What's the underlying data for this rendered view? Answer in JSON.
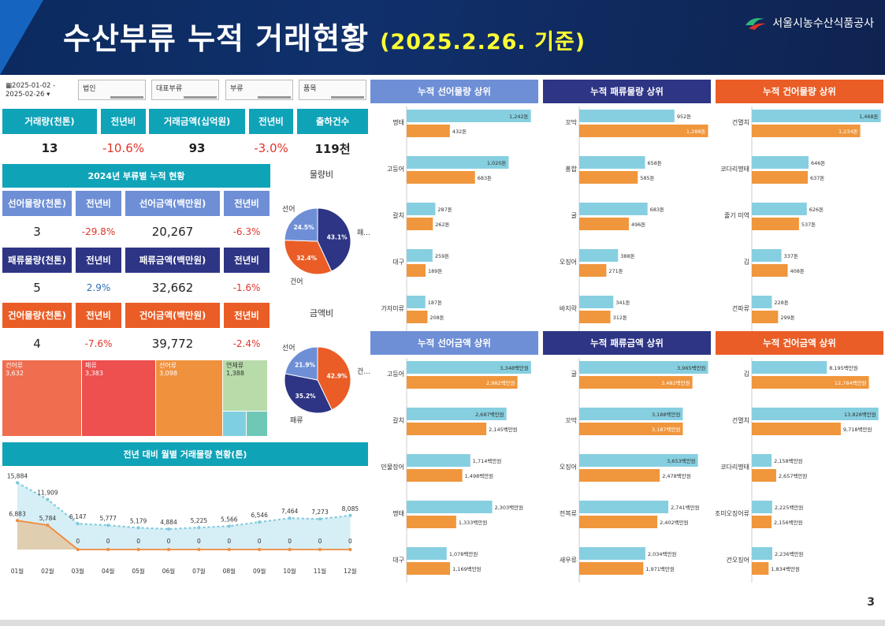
{
  "header": {
    "title": "수산부류 누적 거래현황",
    "date": "(2025.2.26. 기준)",
    "org": "서울시농수산식품공사"
  },
  "filters": {
    "date": "2025-01-02 - 2025-02-26",
    "corp": "법인",
    "major": "대표부류",
    "category": "부류",
    "item": "품목"
  },
  "kpi": {
    "headers": [
      "거래량(천톤)",
      "전년비",
      "거래금액(십억원)",
      "전년비",
      "출하건수"
    ],
    "values": [
      "13",
      "-10.6%",
      "93",
      "-3.0%",
      "119천"
    ]
  },
  "section_title": "2024년 부류별 누적 현황",
  "fresh": {
    "h": [
      "선어물량(천톤)",
      "전년비",
      "선어금액(백만원)",
      "전년비"
    ],
    "v": [
      "3",
      "-29.8%",
      "20,267",
      "-6.3%"
    ]
  },
  "shell": {
    "h": [
      "패류물량(천톤)",
      "전년비",
      "패류금액(백만원)",
      "전년비"
    ],
    "v": [
      "5",
      "2.9%",
      "32,662",
      "-1.6%"
    ]
  },
  "dried": {
    "h": [
      "건어물량(천톤)",
      "전년비",
      "건어금액(백만원)",
      "전년비"
    ],
    "v": [
      "4",
      "-7.6%",
      "39,772",
      "-2.4%"
    ]
  },
  "pie_volume": {
    "title": "물량비",
    "slices": [
      {
        "label": "패...",
        "pct": 43.1,
        "color": "#2e3585"
      },
      {
        "label": "건어",
        "pct": 32.4,
        "color": "#ea5d26"
      },
      {
        "label": "선어",
        "pct": 24.5,
        "color": "#6e8fd6"
      }
    ]
  },
  "pie_amount": {
    "title": "금액비",
    "slices": [
      {
        "label": "건...",
        "pct": 42.9,
        "color": "#ea5d26"
      },
      {
        "label": "패류",
        "pct": 35.2,
        "color": "#2e3585"
      },
      {
        "label": "선어",
        "pct": 21.9,
        "color": "#6e8fd6"
      }
    ]
  },
  "treemap": [
    {
      "label": "건어류",
      "value": "3,632",
      "color": "#ef6e4f"
    },
    {
      "label": "패류",
      "value": "3,383",
      "color": "#ee4f4f"
    },
    {
      "label": "선어류",
      "value": "3,098",
      "color": "#f0913e"
    },
    {
      "label": "연체류",
      "value": "1,388",
      "color": "#b8dbaa"
    },
    {
      "label": "",
      "value": "",
      "color": "#7fcfe0"
    },
    {
      "label": "",
      "value": "",
      "color": "#6fc8b6"
    }
  ],
  "line_chart": {
    "title": "전년 대비 월별 거래물량 현황(톤)",
    "months": [
      "01월",
      "02월",
      "03월",
      "04월",
      "05월",
      "06월",
      "07월",
      "08월",
      "09월",
      "10월",
      "11월",
      "12월"
    ],
    "prev": [
      15884,
      11909,
      6147,
      5777,
      5179,
      4884,
      5225,
      5566,
      6546,
      7464,
      7273,
      8085
    ],
    "curr": [
      6883,
      5784,
      0,
      0,
      0,
      0,
      0,
      0,
      0,
      0,
      0,
      0
    ],
    "prev_labels": [
      "15,884",
      "11,909",
      "6,147",
      "5,777",
      "5,179",
      "4,884",
      "5,225",
      "5,566",
      "6,546",
      "7,464",
      "7,273",
      "8,085"
    ],
    "curr_labels": [
      "6,883",
      "5,784",
      "0",
      "0",
      "0",
      "0",
      "0",
      "0",
      "0",
      "0",
      "0",
      "0"
    ]
  },
  "panels": [
    {
      "title": "누적 선어물량 상위",
      "color": "#6e8fd6",
      "max": 1300,
      "unit": "톤",
      "items": [
        {
          "n": "명태",
          "a": 1242,
          "b": 432
        },
        {
          "n": "고등어",
          "a": 1020,
          "b": 683
        },
        {
          "n": "갈치",
          "a": 287,
          "b": 262
        },
        {
          "n": "대구",
          "a": 259,
          "b": 189
        },
        {
          "n": "가자미류",
          "a": 187,
          "b": 208
        }
      ]
    },
    {
      "title": "누적 패류물량 상위",
      "color": "#2e3585",
      "max": 1300,
      "unit": "톤",
      "items": [
        {
          "n": "꼬막",
          "a": 952,
          "b": 1288
        },
        {
          "n": "홍합",
          "a": 658,
          "b": 585
        },
        {
          "n": "굴",
          "a": 683,
          "b": 496
        },
        {
          "n": "오징어",
          "a": 388,
          "b": 271
        },
        {
          "n": "바지락",
          "a": 341,
          "b": 312
        }
      ]
    },
    {
      "title": "누적 건어물량 상위",
      "color": "#ea5d26",
      "max": 1480,
      "unit": "톤",
      "items": [
        {
          "n": "건멸치",
          "a": 1468,
          "b": 1234
        },
        {
          "n": "코다리명태",
          "a": 646,
          "b": 637
        },
        {
          "n": "줄기 미역",
          "a": 626,
          "b": 537
        },
        {
          "n": "김",
          "a": 337,
          "b": 408
        },
        {
          "n": "건파류",
          "a": 228,
          "b": 299
        }
      ]
    },
    {
      "title": "누적 선어금액 상위",
      "color": "#6e8fd6",
      "max": 3500,
      "unit": "백만원",
      "items": [
        {
          "n": "고등어",
          "a": 3348,
          "b": 2982
        },
        {
          "n": "갈치",
          "a": 2687,
          "b": 2145
        },
        {
          "n": "민물장어",
          "a": 1714,
          "b": 1498
        },
        {
          "n": "명태",
          "a": 2303,
          "b": 1333
        },
        {
          "n": "대구",
          "a": 1078,
          "b": 1169
        }
      ]
    },
    {
      "title": "누적 패류금액 상위",
      "color": "#2e3585",
      "max": 4000,
      "unit": "백만원",
      "items": [
        {
          "n": "굴",
          "a": 3965,
          "b": 3482
        },
        {
          "n": "꼬막",
          "a": 3188,
          "b": 3187
        },
        {
          "n": "오징어",
          "a": 3653,
          "b": 2478
        },
        {
          "n": "전복류",
          "a": 2741,
          "b": 2402
        },
        {
          "n": "새우류",
          "a": 2034,
          "b": 1971
        }
      ]
    },
    {
      "title": "누적 건어금액 상위",
      "color": "#ea5d26",
      "max": 14200,
      "unit": "백만원",
      "items": [
        {
          "n": "김",
          "a": 8195,
          "b": 12784
        },
        {
          "n": "건멸치",
          "a": 13828,
          "b": 9718
        },
        {
          "n": "코다리명태",
          "a": 2158,
          "b": 2657
        },
        {
          "n": "조미오징어류",
          "a": 2225,
          "b": 2156
        },
        {
          "n": "건오징어",
          "a": 2236,
          "b": 1834
        }
      ]
    }
  ],
  "page": "3"
}
